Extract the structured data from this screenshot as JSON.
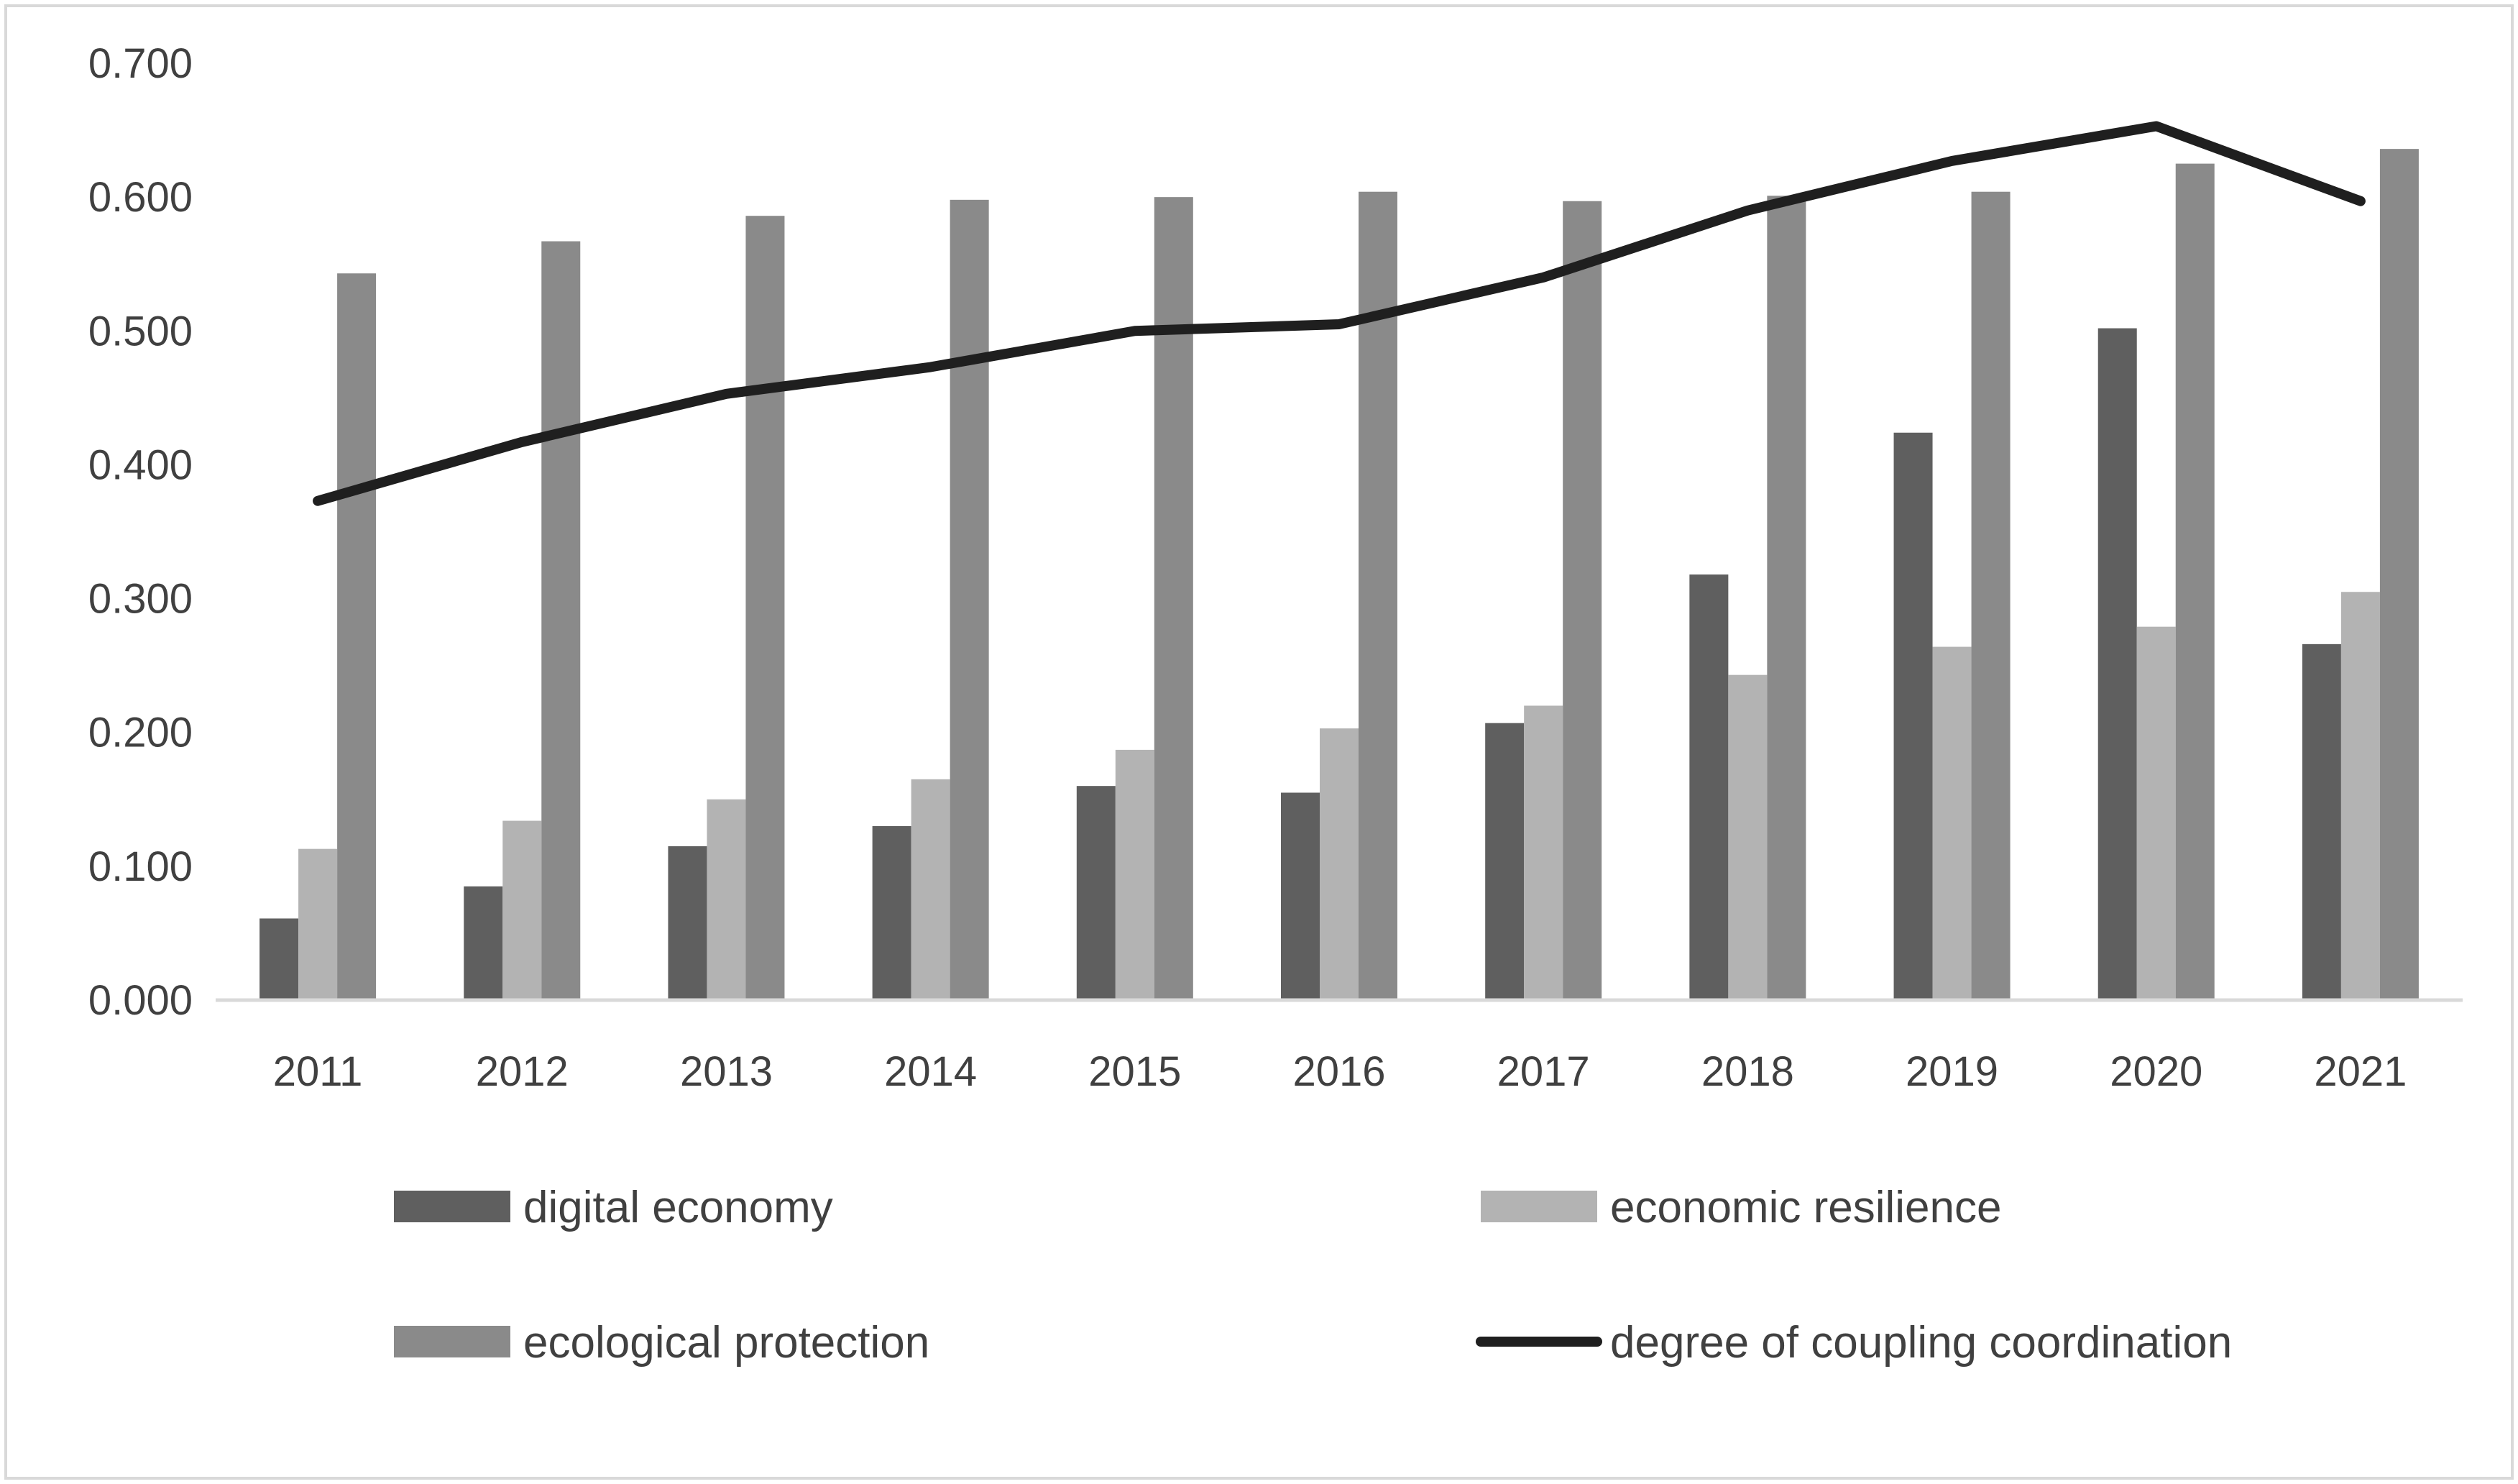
{
  "chart_data": {
    "type": "bar",
    "title": "",
    "xlabel": "",
    "ylabel": "",
    "ylim": [
      0,
      0.7
    ],
    "yticks": [
      "0.000",
      "0.100",
      "0.200",
      "0.300",
      "0.400",
      "0.500",
      "0.600",
      "0.700"
    ],
    "grid": false,
    "legend_position": "bottom",
    "categories": [
      "2011",
      "2012",
      "2013",
      "2014",
      "2015",
      "2016",
      "2017",
      "2018",
      "2019",
      "2020",
      "2021"
    ],
    "series": [
      {
        "name": "digital economy",
        "kind": "bar",
        "color": "#5f5f5f",
        "values": [
          0.061,
          0.085,
          0.115,
          0.13,
          0.16,
          0.155,
          0.207,
          0.318,
          0.424,
          0.502,
          0.266
        ]
      },
      {
        "name": "economic resilience",
        "kind": "bar",
        "color": "#b3b3b3",
        "values": [
          0.113,
          0.134,
          0.15,
          0.165,
          0.187,
          0.203,
          0.22,
          0.243,
          0.264,
          0.279,
          0.305
        ]
      },
      {
        "name": "ecological protection",
        "kind": "bar",
        "color": "#8a8a8a",
        "values": [
          0.543,
          0.567,
          0.586,
          0.598,
          0.6,
          0.604,
          0.597,
          0.601,
          0.604,
          0.625,
          0.636
        ]
      },
      {
        "name": "degree of coupling coordination",
        "kind": "line",
        "color": "#1f1f1f",
        "values": [
          0.373,
          0.417,
          0.453,
          0.473,
          0.5,
          0.505,
          0.54,
          0.59,
          0.627,
          0.653,
          0.597
        ]
      }
    ]
  }
}
